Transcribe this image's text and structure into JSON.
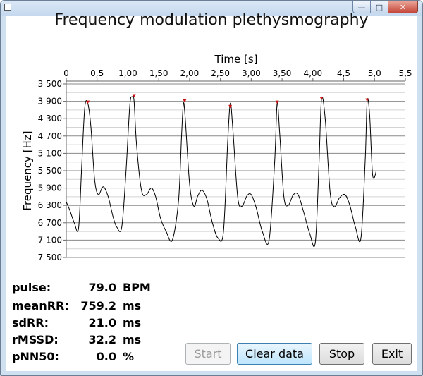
{
  "window": {
    "title": ""
  },
  "chart_data": {
    "type": "line",
    "title": "Frequency modulation plethysmography",
    "xlabel": "Time [s]",
    "ylabel": "Frequency [Hz]",
    "xlim": [
      0,
      5.5
    ],
    "ylim": [
      3500,
      7500
    ],
    "y_inverted": true,
    "x_ticks": [
      "0",
      "0,5",
      "1,00",
      "1,50",
      "2,00",
      "2,50",
      "3,00",
      "3,50",
      "4,00",
      "4,5",
      "5,0",
      "5,5"
    ],
    "x_tick_values": [
      0,
      0.5,
      1.0,
      1.5,
      2.0,
      2.5,
      3.0,
      3.5,
      4.0,
      4.5,
      5.0,
      5.5
    ],
    "y_ticks": [
      "3 500",
      "3 900",
      "4 300",
      "4 700",
      "5 100",
      "5 500",
      "5 900",
      "6 300",
      "6 700",
      "7 100",
      "7 500"
    ],
    "y_tick_values": [
      3500,
      3900,
      4300,
      4700,
      5100,
      5500,
      5900,
      6300,
      6700,
      7100,
      7500
    ],
    "grid": true,
    "series": [
      {
        "x": [
          0,
          0.06,
          0.13,
          0.2,
          0.25,
          0.3,
          0.35,
          0.4,
          0.46,
          0.52,
          0.6,
          0.68,
          0.76,
          0.82,
          0.9,
          0.97,
          1.03,
          1.07,
          1.1,
          1.14,
          1.22,
          1.3,
          1.38,
          1.45,
          1.53,
          1.62,
          1.72,
          1.82,
          1.87,
          1.9,
          1.93,
          2.0,
          2.07,
          2.13,
          2.2,
          2.28,
          2.37,
          2.46,
          2.55,
          2.62,
          2.66,
          2.7,
          2.78,
          2.85,
          2.93,
          3.0,
          3.08,
          3.18,
          3.29,
          3.38,
          3.42,
          3.46,
          3.53,
          3.6,
          3.68,
          3.76,
          3.85,
          3.95,
          4.04,
          4.1,
          4.14,
          4.2,
          4.28,
          4.35,
          4.43,
          4.52,
          4.6,
          4.69,
          4.78,
          4.85,
          4.88,
          4.92,
          4.97,
          5.03
        ],
        "y": [
          6220,
          6420,
          6700,
          6820,
          5400,
          4050,
          3950,
          4500,
          5700,
          6050,
          5870,
          6100,
          6570,
          6800,
          6800,
          5500,
          4000,
          3800,
          3900,
          4900,
          5950,
          6050,
          5900,
          6100,
          6600,
          6900,
          7100,
          6200,
          4700,
          3950,
          4300,
          5800,
          6320,
          6090,
          5950,
          6150,
          6700,
          7050,
          6900,
          4800,
          3950,
          4500,
          6100,
          6320,
          6080,
          6050,
          6350,
          6900,
          7100,
          5300,
          3950,
          4600,
          6100,
          6300,
          6060,
          6050,
          6450,
          6950,
          7150,
          5300,
          3850,
          4300,
          6000,
          6330,
          6130,
          6050,
          6300,
          6800,
          7050,
          5200,
          3900,
          4200,
          5600,
          5500
        ]
      }
    ],
    "peak_markers": {
      "x": [
        0.35,
        1.1,
        1.92,
        2.66,
        3.42,
        4.14,
        4.88
      ],
      "y": [
        3950,
        3800,
        3920,
        4050,
        3950,
        3860,
        3900
      ],
      "color": "#cc1111"
    },
    "line_color": "#000000"
  },
  "stats": [
    {
      "label": "pulse:",
      "value": "79.0",
      "unit": "BPM"
    },
    {
      "label": "meanRR:",
      "value": "759.2",
      "unit": "ms"
    },
    {
      "label": "sdRR:",
      "value": "21.0",
      "unit": "ms"
    },
    {
      "label": "rMSSD:",
      "value": "32.2",
      "unit": "ms"
    },
    {
      "label": "pNN50:",
      "value": "0.0",
      "unit": "%"
    }
  ],
  "buttons": {
    "start": "Start",
    "clear": "Clear data",
    "stop": "Stop",
    "exit": "Exit"
  },
  "caption": {
    "minimize": "—",
    "maximize": "□",
    "close": "✕"
  }
}
